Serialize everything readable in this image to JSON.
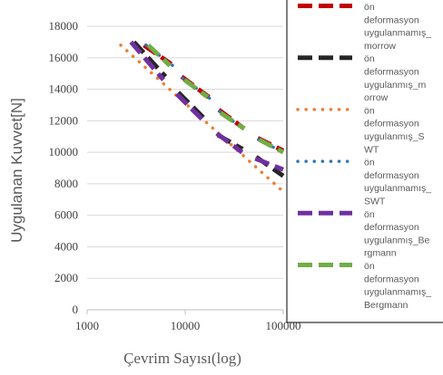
{
  "chart_data": {
    "type": "line",
    "title": "",
    "xlabel": "Çevrim Sayısı(log)",
    "ylabel": "Uygulanan Kuvvet[N]",
    "x_scale": "log",
    "xlim": [
      1000,
      100000
    ],
    "ylim": [
      0,
      18000
    ],
    "x_ticks": [
      "1000",
      "10000",
      "100000"
    ],
    "x_tick_values": [
      1000,
      10000,
      100000
    ],
    "y_ticks": [
      "0",
      "2000",
      "4000",
      "6000",
      "8000",
      "10000",
      "12000",
      "14000",
      "16000",
      "18000"
    ],
    "y_tick_values": [
      0,
      2000,
      4000,
      6000,
      8000,
      10000,
      12000,
      14000,
      16000,
      18000
    ],
    "grid": {
      "y": true,
      "x": false
    },
    "legend_position": "right",
    "series": [
      {
        "name": "ön deformasyon uygulanmamış_morrow",
        "legend_lines": [
          "ön",
          "deformasyon",
          "uygulanmamış_",
          "morrow"
        ],
        "color": "#c00000",
        "dash": "long-dash",
        "segments": [
          {
            "x": [
              3800,
              7200
            ],
            "y": [
              16800,
              15600
            ]
          },
          {
            "x": [
              9200,
              17500
            ],
            "y": [
              14800,
              13500
            ]
          },
          {
            "x": [
              22000,
              40000
            ],
            "y": [
              12700,
              11500
            ]
          },
          {
            "x": [
              55000,
              100000
            ],
            "y": [
              10900,
              10100
            ]
          }
        ]
      },
      {
        "name": "ön deformasyon uygulanmış_morrow",
        "legend_lines": [
          "ön",
          "deformasyon",
          "uygulanmış_m",
          "orrow"
        ],
        "color": "#262626",
        "dash": "long-dash",
        "segments": [
          {
            "x": [
              3000,
              6300
            ],
            "y": [
              17000,
              14800
            ]
          },
          {
            "x": [
              8500,
              16500
            ],
            "y": [
              13800,
              12000
            ]
          },
          {
            "x": [
              21500,
              38500
            ],
            "y": [
              11100,
              10200
            ]
          },
          {
            "x": [
              53000,
              100000
            ],
            "y": [
              9700,
              8500
            ]
          }
        ]
      },
      {
        "name": "ön deformasyon uygulanmış_SWT",
        "legend_lines": [
          "ön",
          "deformasyon",
          "uygulanmış_S",
          "WT"
        ],
        "color": "#ed7d31",
        "dash": "dotted",
        "segments": [
          {
            "x": [
              2200,
              100000
            ],
            "y": [
              16800,
              7500
            ]
          }
        ]
      },
      {
        "name": "ön deformasyon uygulanmamış_SWT",
        "legend_lines": [
          "ön",
          "deformasyon",
          "uygulanmamış_",
          "SWT"
        ],
        "color": "#2e75b6",
        "dash": "dotted",
        "segments": [
          {
            "x": [
              4000,
              7500
            ],
            "y": [
              16800,
              15500
            ]
          },
          {
            "x": [
              9500,
              18000
            ],
            "y": [
              14700,
              13400
            ]
          },
          {
            "x": [
              22500,
              41000
            ],
            "y": [
              12600,
              11400
            ]
          },
          {
            "x": [
              56000,
              100000
            ],
            "y": [
              10800,
              10000
            ]
          }
        ]
      },
      {
        "name": "ön deformasyon uygulanmış_Bergmann",
        "legend_lines": [
          "ön",
          "deformasyon",
          "uygulanmış_Be",
          "rgmann"
        ],
        "color": "#7030a0",
        "dash": "long-dash",
        "segments": [
          {
            "x": [
              2800,
              6000
            ],
            "y": [
              17000,
              14600
            ]
          },
          {
            "x": [
              8200,
              16000
            ],
            "y": [
              13700,
              11900
            ]
          },
          {
            "x": [
              21000,
              38000
            ],
            "y": [
              11200,
              10000
            ]
          },
          {
            "x": [
              52000,
              100000
            ],
            "y": [
              9600,
              8900
            ]
          }
        ]
      },
      {
        "name": "ön deformasyon uygulanmamış_Bergmann",
        "legend_lines": [
          "ön",
          "deformasyon",
          "uygulanmamış_",
          "Bergmann"
        ],
        "color": "#70ad47",
        "dash": "long-dash",
        "segments": [
          {
            "x": [
              4200,
              7000
            ],
            "y": [
              16800,
              15500
            ]
          },
          {
            "x": [
              9800,
              17000
            ],
            "y": [
              14600,
              13500
            ]
          },
          {
            "x": [
              23000,
              40000
            ],
            "y": [
              12500,
              11500
            ]
          },
          {
            "x": [
              57000,
              100000
            ],
            "y": [
              10800,
              10000
            ]
          }
        ]
      }
    ]
  }
}
